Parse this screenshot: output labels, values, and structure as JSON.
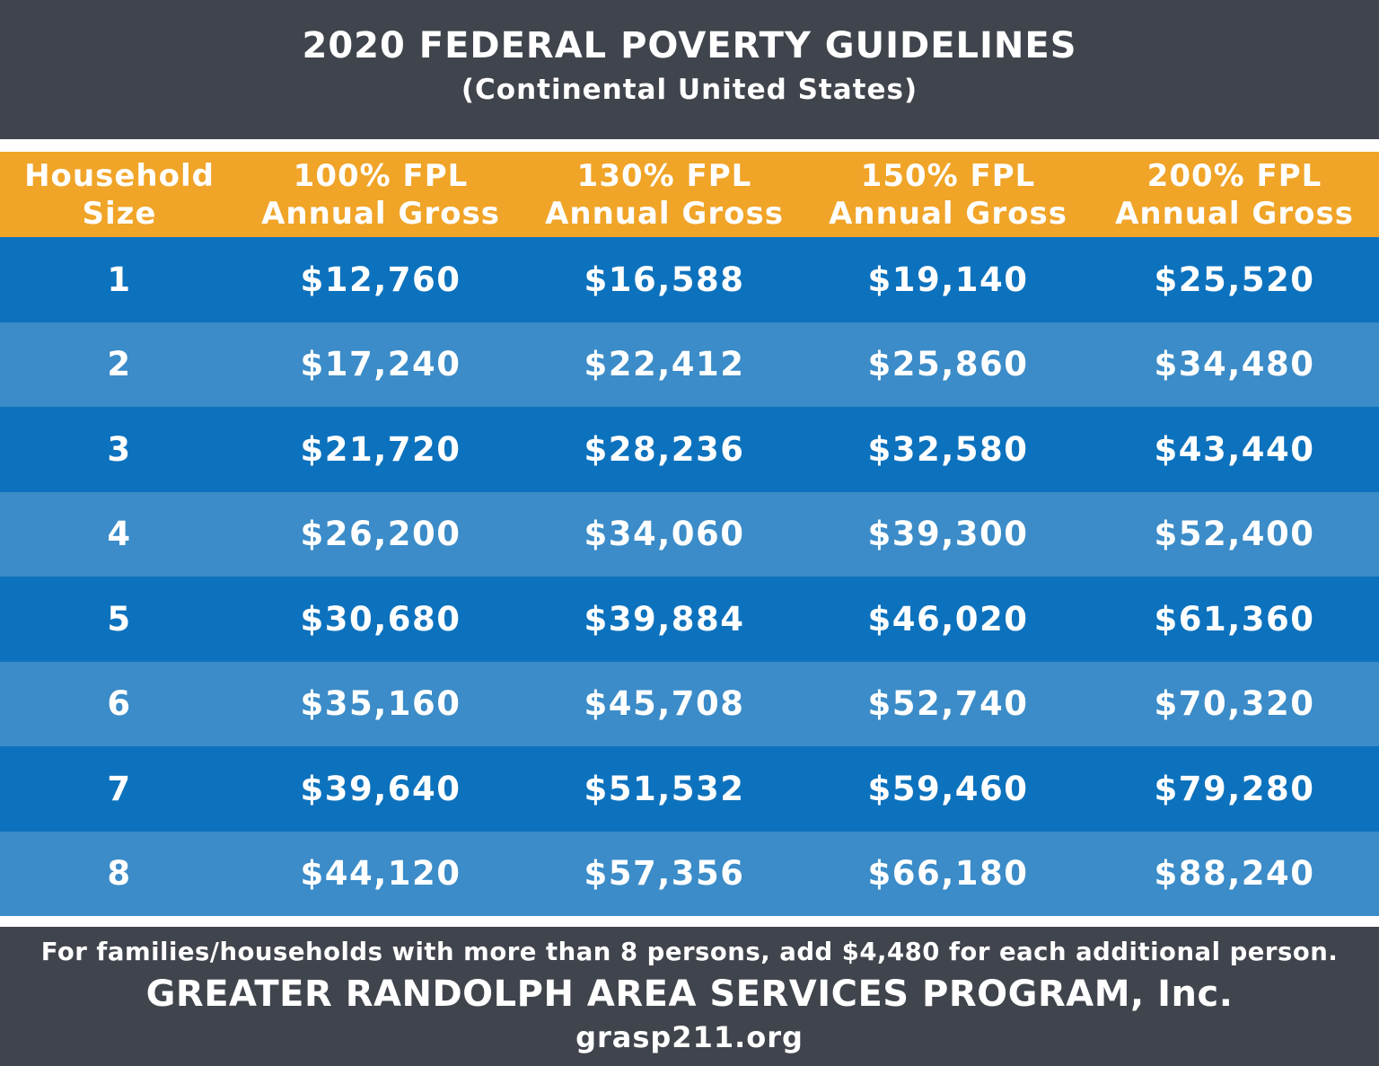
{
  "header": {
    "title": "2020 FEDERAL POVERTY GUIDELINES",
    "subtitle": "(Continental United States)"
  },
  "table": {
    "columns": [
      [
        "Household",
        "Size"
      ],
      [
        "100% FPL",
        "Annual Gross"
      ],
      [
        "130% FPL",
        "Annual Gross"
      ],
      [
        "150% FPL",
        "Annual Gross"
      ],
      [
        "200% FPL",
        "Annual Gross"
      ]
    ],
    "rows": [
      [
        "1",
        "$12,760",
        "$16,588",
        "$19,140",
        "$25,520"
      ],
      [
        "2",
        "$17,240",
        "$22,412",
        "$25,860",
        "$34,480"
      ],
      [
        "3",
        "$21,720",
        "$28,236",
        "$32,580",
        "$43,440"
      ],
      [
        "4",
        "$26,200",
        "$34,060",
        "$39,300",
        "$52,400"
      ],
      [
        "5",
        "$30,680",
        "$39,884",
        "$46,020",
        "$61,360"
      ],
      [
        "6",
        "$35,160",
        "$45,708",
        "$52,740",
        "$70,320"
      ],
      [
        "7",
        "$39,640",
        "$51,532",
        "$59,460",
        "$79,280"
      ],
      [
        "8",
        "$44,120",
        "$57,356",
        "$66,180",
        "$88,240"
      ]
    ]
  },
  "footer": {
    "note": "For families/households with more than 8 persons, add $4,480 for each additional person.",
    "organization": "GREATER RANDOLPH AREA SERVICES PROGRAM, Inc.",
    "url": "grasp211.org"
  },
  "colors": {
    "header_bg": "#40444c",
    "column_header_bg": "#f0a428",
    "row_dark": "#0d72bd",
    "row_light": "#3b8cc8",
    "text": "#ffffff"
  }
}
